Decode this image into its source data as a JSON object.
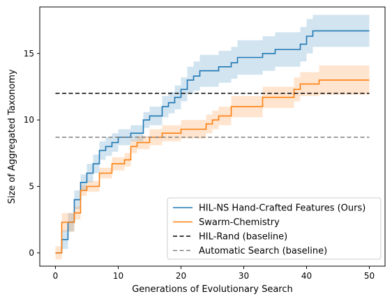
{
  "chart_data": {
    "type": "line",
    "xlabel": "Generations of Evolutionary Search",
    "ylabel": "Size of Aggregated Taxonomy",
    "xlim": [
      -2.5,
      52.5
    ],
    "ylim": [
      -1.0,
      18.5
    ],
    "xticks": [
      0,
      10,
      20,
      30,
      40,
      50
    ],
    "yticks": [
      0,
      5,
      10,
      15
    ],
    "grid": false,
    "legend_position": "lower-right",
    "series": [
      {
        "name": "HIL-NS Hand-Crafted Features (Ours)",
        "color": "#1f77b4",
        "style": "solid",
        "x": [
          0,
          1,
          2,
          3,
          4,
          5,
          6,
          7,
          8,
          9,
          10,
          11,
          12,
          13,
          14,
          15,
          16,
          17,
          18,
          19,
          20,
          21,
          22,
          23,
          24,
          25,
          26,
          27,
          28,
          29,
          30,
          31,
          32,
          33,
          34,
          35,
          36,
          37,
          38,
          39,
          40,
          41,
          42,
          43,
          44,
          45,
          46,
          47,
          48,
          49,
          50
        ],
        "y": [
          0,
          1,
          2.3,
          4,
          5.3,
          6,
          6.7,
          7.7,
          8,
          8.3,
          8.7,
          8.7,
          9,
          9,
          10,
          10.3,
          10.3,
          11,
          11.3,
          11.7,
          12.3,
          13,
          13.3,
          13.7,
          13.7,
          13.7,
          14,
          14,
          14.3,
          14.7,
          14.7,
          14.7,
          14.7,
          15,
          15,
          15.3,
          15.3,
          15.3,
          15.3,
          15.7,
          16.3,
          16.7,
          16.7,
          16.7,
          16.7,
          16.7,
          16.7,
          16.7,
          16.7,
          16.7,
          16.7
        ],
        "lower": [
          0,
          0.3,
          1.6,
          3.3,
          4.7,
          5.3,
          6,
          7,
          7.3,
          7.6,
          8.1,
          8.1,
          8.4,
          8.4,
          9.4,
          9.6,
          9.6,
          10.2,
          10.5,
          10.8,
          11.4,
          12,
          12.2,
          12.5,
          12.5,
          12.5,
          12.8,
          12.8,
          13.1,
          13.4,
          13.4,
          13.4,
          13.4,
          13.7,
          13.7,
          14,
          14,
          14,
          14,
          14.4,
          15,
          15.5,
          15.5,
          15.5,
          15.5,
          15.5,
          15.5,
          15.5,
          15.5,
          15.5,
          15.5
        ],
        "upper": [
          0,
          1.7,
          3,
          4.7,
          5.9,
          6.7,
          7.4,
          8.4,
          8.7,
          9,
          9.3,
          9.3,
          9.6,
          9.6,
          10.6,
          11,
          11,
          11.8,
          12.1,
          12.6,
          13.2,
          14,
          14.4,
          14.9,
          14.9,
          14.9,
          15.2,
          15.2,
          15.5,
          16,
          16,
          16,
          16,
          16.3,
          16.3,
          16.6,
          16.6,
          16.6,
          16.6,
          17,
          17.6,
          17.9,
          17.9,
          17.9,
          17.9,
          17.9,
          17.9,
          17.9,
          17.9,
          17.9,
          17.9
        ]
      },
      {
        "name": "Swarm-Chemistry",
        "color": "#ff7f0e",
        "style": "solid",
        "x": [
          0,
          1,
          2,
          3,
          4,
          5,
          6,
          7,
          8,
          9,
          10,
          11,
          12,
          13,
          14,
          15,
          16,
          17,
          18,
          19,
          20,
          21,
          22,
          23,
          24,
          25,
          26,
          27,
          28,
          29,
          30,
          31,
          32,
          33,
          34,
          35,
          36,
          37,
          38,
          39,
          40,
          41,
          42,
          43,
          44,
          45,
          46,
          47,
          48,
          49,
          50
        ],
        "y": [
          0,
          2.3,
          2.3,
          3,
          4.7,
          5,
          5,
          6,
          6,
          6.7,
          6.7,
          7,
          8,
          8.3,
          8.3,
          8.7,
          8.7,
          9,
          9,
          9,
          9.3,
          9.3,
          9.3,
          9.3,
          9.7,
          10,
          10.3,
          10.3,
          11,
          11,
          11,
          11,
          11,
          11.7,
          11.7,
          11.7,
          11.7,
          11.7,
          12.3,
          12.7,
          12.7,
          12.7,
          13,
          13,
          13,
          13,
          13,
          13,
          13,
          13,
          13
        ],
        "lower": [
          -0.5,
          1.6,
          1.6,
          2.5,
          4.3,
          4.6,
          4.6,
          5.6,
          5.6,
          6.2,
          6.2,
          6.5,
          7.5,
          7.8,
          7.8,
          8.1,
          8.1,
          8.4,
          8.4,
          8.4,
          8.6,
          8.6,
          8.6,
          8.6,
          9,
          9.3,
          9.6,
          9.6,
          10.2,
          10.2,
          10.2,
          10.2,
          10.2,
          10.9,
          10.9,
          10.9,
          10.9,
          10.9,
          11.4,
          11.8,
          11.8,
          11.8,
          11.9,
          11.9,
          11.9,
          11.9,
          11.9,
          11.9,
          11.9,
          11.9,
          11.9
        ],
        "upper": [
          0.5,
          3,
          3,
          3.5,
          5.1,
          5.4,
          5.4,
          6.4,
          6.4,
          7.2,
          7.2,
          7.5,
          8.5,
          8.8,
          8.8,
          9.3,
          9.3,
          9.6,
          9.6,
          9.6,
          10,
          10,
          10,
          10,
          10.4,
          10.7,
          11,
          11,
          11.8,
          11.8,
          11.8,
          11.8,
          11.8,
          12.5,
          12.5,
          12.5,
          12.5,
          12.5,
          13.2,
          13.6,
          13.6,
          13.6,
          14.1,
          14.1,
          14.1,
          14.1,
          14.1,
          14.1,
          14.1,
          14.1,
          14.1
        ]
      },
      {
        "name": "HIL-Rand (baseline)",
        "color": "#000000",
        "style": "dashed",
        "x": [
          0,
          50
        ],
        "y": [
          12,
          12
        ]
      },
      {
        "name": "Automatic Search (baseline)",
        "color": "#7f7f7f",
        "style": "dashed",
        "x": [
          0,
          50
        ],
        "y": [
          8.7,
          8.7
        ]
      }
    ]
  }
}
